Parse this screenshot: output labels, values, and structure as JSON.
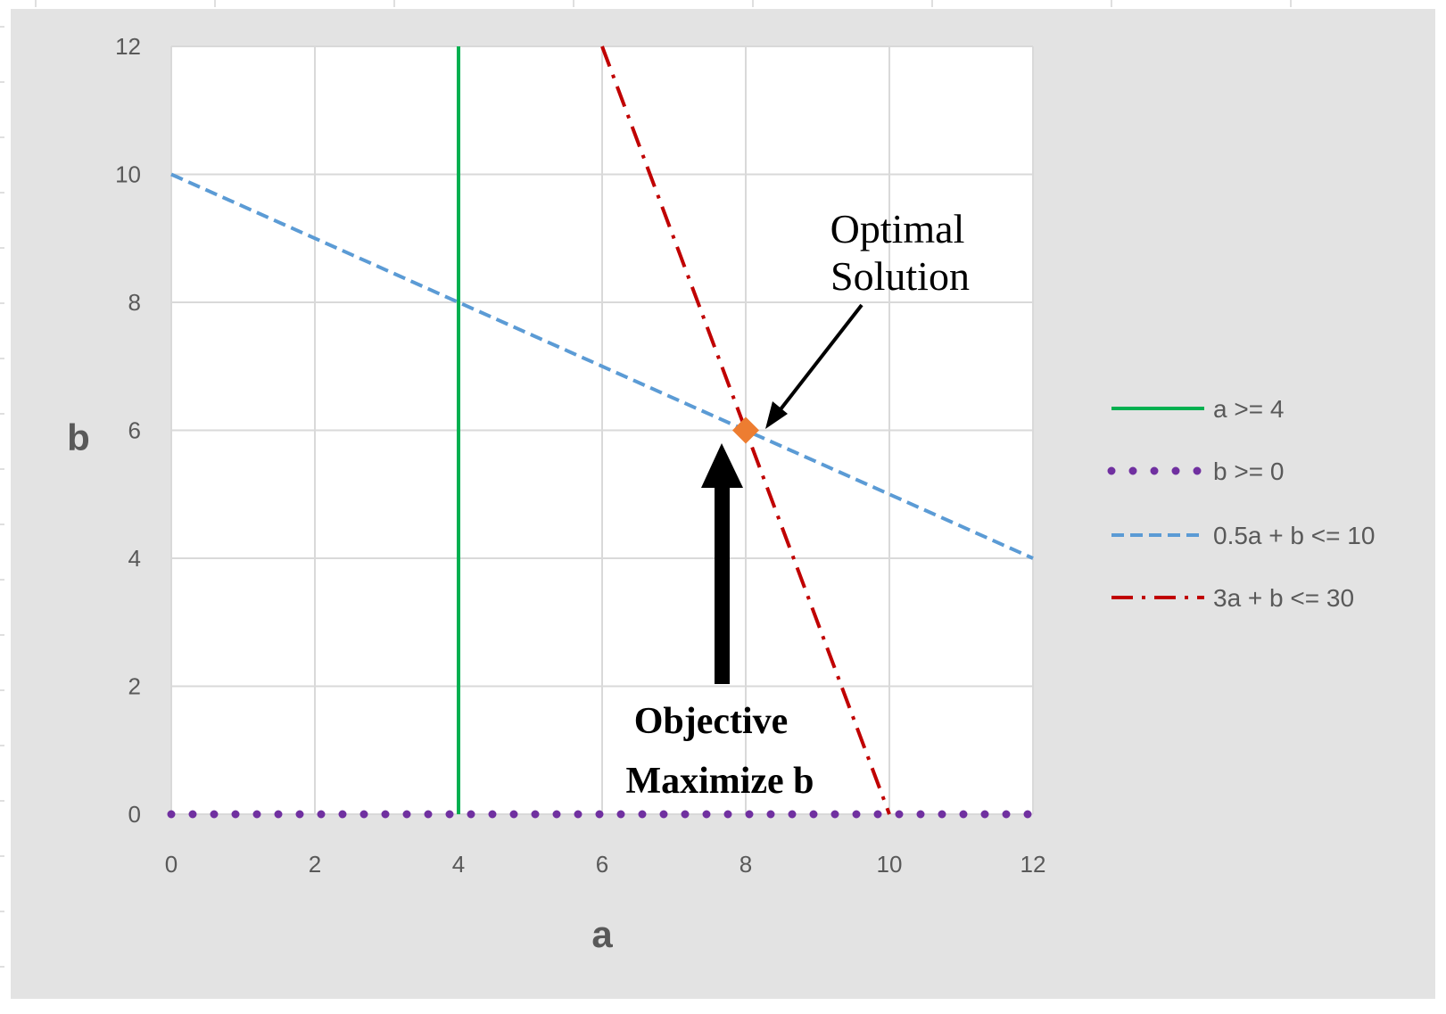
{
  "chart_data": {
    "type": "line",
    "xlabel": "a",
    "ylabel": "b",
    "xlim": [
      0,
      12
    ],
    "ylim": [
      0,
      12
    ],
    "x_ticks": [
      "0",
      "2",
      "4",
      "6",
      "8",
      "10",
      "12"
    ],
    "y_ticks": [
      "0",
      "2",
      "4",
      "6",
      "8",
      "10",
      "12"
    ],
    "grid": true,
    "legend_position": "right",
    "series": [
      {
        "name": "a >= 4",
        "style": "solid",
        "color": "#00b050",
        "points": [
          [
            4,
            0
          ],
          [
            4,
            12
          ]
        ]
      },
      {
        "name": "b >= 0",
        "style": "dotted",
        "color": "#7030a0",
        "points": [
          [
            0,
            0
          ],
          [
            12,
            0
          ]
        ]
      },
      {
        "name": "0.5a + b <= 10",
        "style": "dashed",
        "color": "#5b9bd5",
        "points": [
          [
            0,
            10
          ],
          [
            12,
            4
          ]
        ]
      },
      {
        "name": "3a + b <= 30",
        "style": "dash-dot",
        "color": "#c00000",
        "points": [
          [
            6,
            12
          ],
          [
            10,
            0
          ]
        ]
      }
    ],
    "optimal_point": {
      "x": 8,
      "y": 6,
      "color": "#ed7d31"
    },
    "annotations": {
      "optimal_label_line1": "Optimal",
      "optimal_label_line2": "Solution",
      "objective_line1": "Objective",
      "objective_line2": "Maximize b"
    }
  },
  "colors": {
    "frame_background": "#e3e3e3",
    "plot_background": "#ffffff",
    "grid": "#d9d9d9"
  }
}
